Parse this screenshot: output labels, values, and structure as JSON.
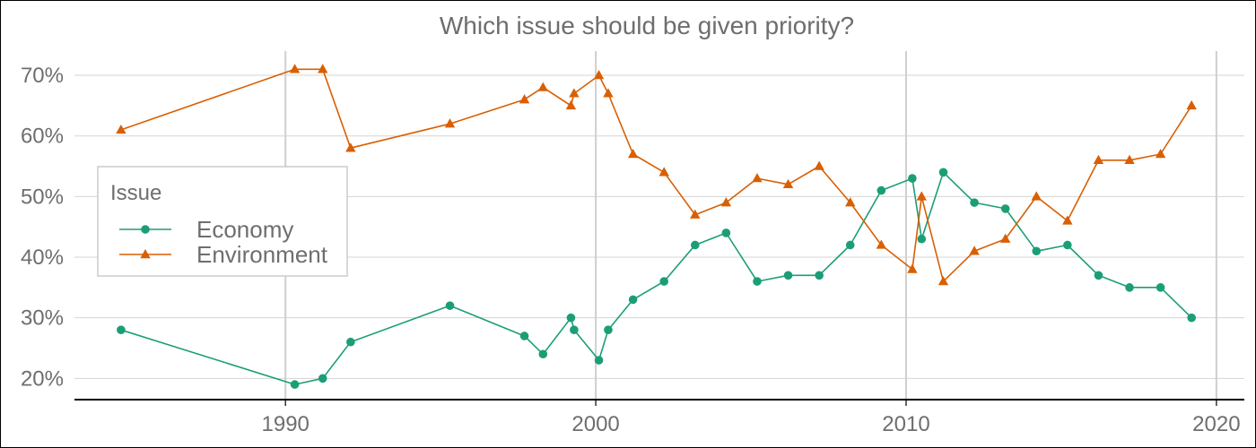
{
  "chart_data": {
    "type": "line",
    "title": "Which issue should be given priority?",
    "xlabel": "",
    "ylabel": "",
    "xlim": [
      1983.2,
      2020.9
    ],
    "ylim": [
      16.5,
      74
    ],
    "x_ticks": [
      1990,
      2000,
      2010,
      2020
    ],
    "x_tick_labels": [
      "1990",
      "2000",
      "2010",
      "2020"
    ],
    "y_ticks": [
      20,
      30,
      40,
      50,
      60,
      70
    ],
    "y_tick_labels": [
      "20%",
      "30%",
      "40%",
      "50%",
      "60%",
      "70%"
    ],
    "grid": true,
    "legend": {
      "title": "Issue",
      "position": "left",
      "entries": [
        "Economy",
        "Environment"
      ]
    },
    "series": [
      {
        "name": "Economy",
        "color": "#1b9e77",
        "marker": "circle",
        "x": [
          1984.7,
          1990.3,
          1991.2,
          1992.1,
          1995.3,
          1997.7,
          1998.3,
          1999.2,
          1999.3,
          2000.1,
          2000.4,
          2001.2,
          2002.2,
          2003.2,
          2004.2,
          2005.2,
          2006.2,
          2007.2,
          2008.2,
          2009.2,
          2010.2,
          2010.5,
          2011.2,
          2012.2,
          2013.2,
          2014.2,
          2015.2,
          2016.2,
          2017.2,
          2018.2,
          2019.2
        ],
        "y": [
          28,
          19,
          20,
          26,
          32,
          27,
          24,
          30,
          28,
          23,
          28,
          33,
          36,
          42,
          44,
          36,
          37,
          37,
          42,
          51,
          53,
          43,
          54,
          49,
          48,
          41,
          42,
          37,
          35,
          35,
          30
        ]
      },
      {
        "name": "Environment",
        "color": "#d95f02",
        "marker": "triangle",
        "x": [
          1984.7,
          1990.3,
          1991.2,
          1992.1,
          1995.3,
          1997.7,
          1998.3,
          1999.2,
          1999.3,
          2000.1,
          2000.4,
          2001.2,
          2002.2,
          2003.2,
          2004.2,
          2005.2,
          2006.2,
          2007.2,
          2008.2,
          2009.2,
          2010.2,
          2010.5,
          2011.2,
          2012.2,
          2013.2,
          2014.2,
          2015.2,
          2016.2,
          2017.2,
          2018.2,
          2019.2
        ],
        "y": [
          61,
          71,
          71,
          58,
          62,
          66,
          68,
          65,
          67,
          70,
          67,
          57,
          54,
          47,
          49,
          53,
          52,
          55,
          49,
          42,
          38,
          50,
          36,
          41,
          43,
          50,
          46,
          56,
          56,
          57,
          65
        ]
      }
    ]
  }
}
